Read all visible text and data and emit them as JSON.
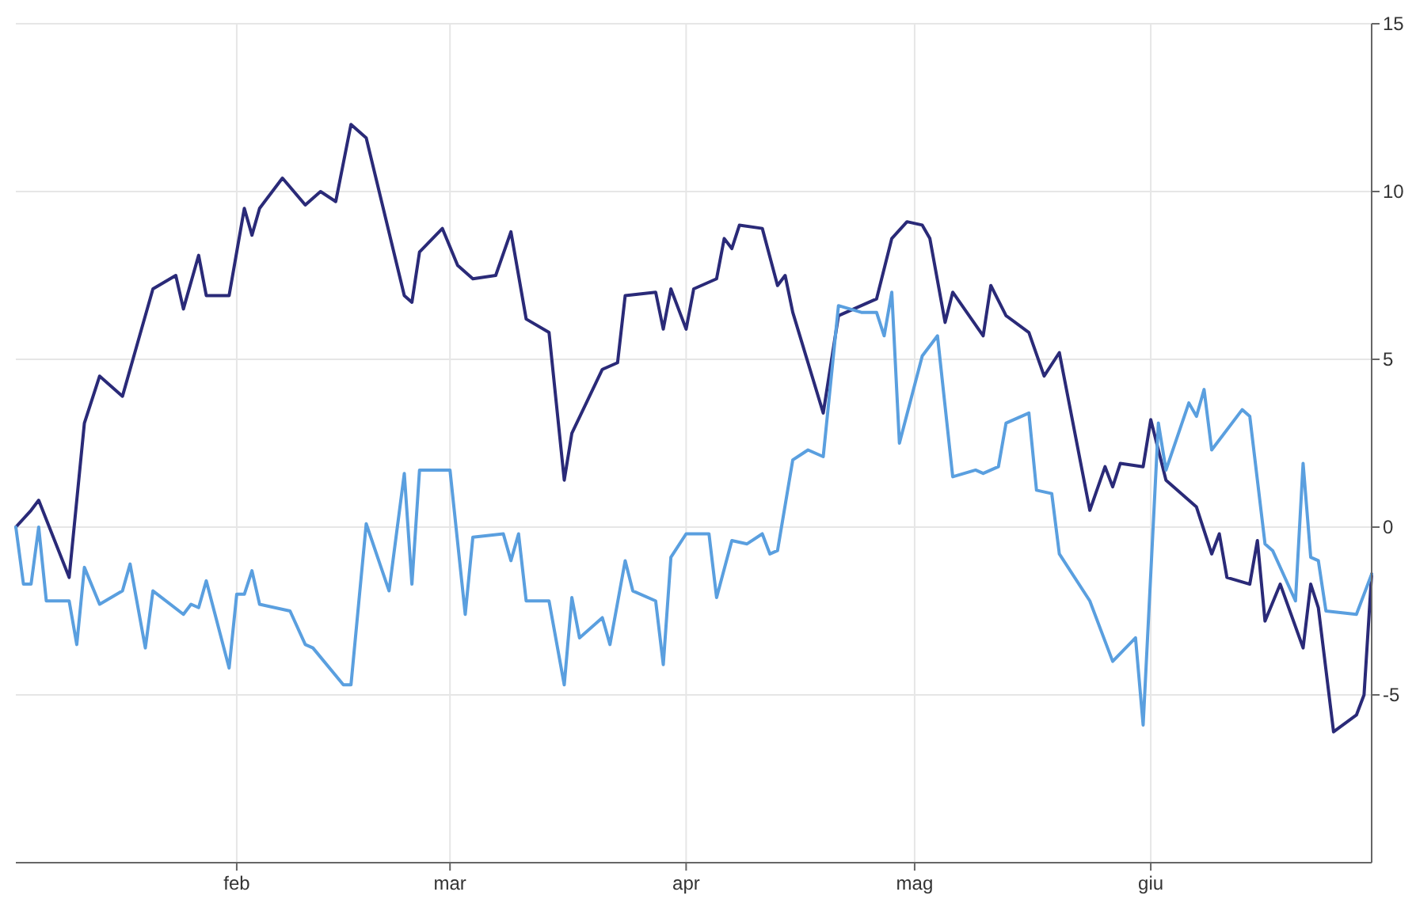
{
  "chart_data": {
    "type": "line",
    "grid": true,
    "line_style": "solid",
    "xlim": [
      "--01-03",
      "--06-30"
    ],
    "xticks": [
      {
        "value": "--02-01",
        "label": "feb"
      },
      {
        "value": "--03-01",
        "label": "mar"
      },
      {
        "value": "--04-01",
        "label": "apr"
      },
      {
        "value": "--05-01",
        "label": "mag"
      },
      {
        "value": "--06-01",
        "label": "giu"
      }
    ],
    "ylim": [
      -10,
      15
    ],
    "yticks": [
      15,
      10,
      5,
      0,
      -5
    ],
    "series": [
      {
        "color": "#2a2a78",
        "x": [
          "--01-03",
          "--01-05",
          "--01-06",
          "--01-10",
          "--01-12",
          "--01-14",
          "--01-17",
          "--01-19",
          "--01-21",
          "--01-24",
          "--01-25",
          "--01-27",
          "--01-28",
          "--01-31",
          "--02-02",
          "--02-03",
          "--02-04",
          "--02-07",
          "--02-10",
          "--02-12",
          "--02-14",
          "--02-16",
          "--02-18",
          "--02-23",
          "--02-24",
          "--02-25",
          "--02-28",
          "--03-02",
          "--03-04",
          "--03-07",
          "--03-09",
          "--03-11",
          "--03-14",
          "--03-16",
          "--03-17",
          "--03-21",
          "--03-23",
          "--03-24",
          "--03-28",
          "--03-29",
          "--03-30",
          "--04-01",
          "--04-02",
          "--04-05",
          "--04-06",
          "--04-07",
          "--04-08",
          "--04-11",
          "--04-13",
          "--04-14",
          "--04-15",
          "--04-19",
          "--04-21",
          "--04-26",
          "--04-28",
          "--04-30",
          "--05-02",
          "--05-03",
          "--05-05",
          "--05-06",
          "--05-10",
          "--05-11",
          "--05-13",
          "--05-16",
          "--05-18",
          "--05-20",
          "--05-24",
          "--05-26",
          "--05-27",
          "--05-28",
          "--05-31",
          "--06-01",
          "--06-03",
          "--06-07",
          "--06-09",
          "--06-10",
          "--06-11",
          "--06-14",
          "--06-15",
          "--06-16",
          "--06-18",
          "--06-21",
          "--06-22",
          "--06-23",
          "--06-25",
          "--06-28",
          "--06-29",
          "--06-30"
        ],
        "values": [
          0,
          0.5,
          0.8,
          -1.5,
          3.1,
          4.5,
          3.9,
          5.5,
          7.1,
          7.5,
          6.5,
          8.1,
          6.9,
          6.9,
          9.5,
          8.7,
          9.5,
          10.4,
          9.6,
          10.0,
          9.7,
          12.0,
          11.6,
          6.9,
          6.7,
          8.2,
          8.9,
          7.8,
          7.4,
          7.5,
          8.8,
          6.2,
          5.8,
          1.4,
          2.8,
          4.7,
          4.9,
          6.9,
          7.0,
          5.9,
          7.1,
          5.9,
          7.1,
          7.4,
          8.6,
          8.3,
          9.0,
          8.9,
          7.2,
          7.5,
          6.4,
          3.4,
          6.3,
          6.8,
          8.6,
          9.1,
          9.0,
          8.6,
          6.1,
          7.0,
          5.7,
          7.2,
          6.3,
          5.8,
          4.5,
          5.2,
          0.5,
          1.8,
          1.2,
          1.9,
          1.8,
          3.2,
          1.4,
          0.6,
          -0.8,
          -0.2,
          -1.5,
          -1.7,
          -0.4,
          -2.8,
          -1.7,
          -3.6,
          -1.7,
          -2.4,
          -6.1,
          -5.6,
          -5.0,
          -1.4
        ]
      },
      {
        "color": "#5a9fdf",
        "x": [
          "--01-03",
          "--01-04",
          "--01-05",
          "--01-06",
          "--01-07",
          "--01-10",
          "--01-11",
          "--01-12",
          "--01-14",
          "--01-17",
          "--01-18",
          "--01-20",
          "--01-21",
          "--01-25",
          "--01-26",
          "--01-27",
          "--01-28",
          "--01-31",
          "--02-01",
          "--02-02",
          "--02-03",
          "--02-04",
          "--02-08",
          "--02-10",
          "--02-11",
          "--02-15",
          "--02-16",
          "--02-18",
          "--02-21",
          "--02-23",
          "--02-24",
          "--02-25",
          "--03-01",
          "--03-03",
          "--03-04",
          "--03-08",
          "--03-09",
          "--03-10",
          "--03-11",
          "--03-14",
          "--03-16",
          "--03-17",
          "--03-18",
          "--03-21",
          "--03-22",
          "--03-24",
          "--03-25",
          "--03-28",
          "--03-29",
          "--03-30",
          "--04-01",
          "--04-04",
          "--04-05",
          "--04-07",
          "--04-09",
          "--04-11",
          "--04-12",
          "--04-13",
          "--04-15",
          "--04-17",
          "--04-19",
          "--04-21",
          "--04-24",
          "--04-26",
          "--04-27",
          "--04-28",
          "--04-29",
          "--05-02",
          "--05-04",
          "--05-06",
          "--05-09",
          "--05-10",
          "--05-12",
          "--05-13",
          "--05-16",
          "--05-17",
          "--05-19",
          "--05-20",
          "--05-24",
          "--05-27",
          "--05-30",
          "--05-31",
          "--06-02",
          "--06-03",
          "--06-06",
          "--06-07",
          "--06-08",
          "--06-09",
          "--06-13",
          "--06-14",
          "--06-16",
          "--06-17",
          "--06-20",
          "--06-21",
          "--06-22",
          "--06-23",
          "--06-24",
          "--06-28",
          "--06-30"
        ],
        "values": [
          0,
          -1.7,
          -1.7,
          0,
          -2.2,
          -2.2,
          -3.5,
          -1.2,
          -2.3,
          -1.9,
          -1.1,
          -3.6,
          -1.9,
          -2.6,
          -2.3,
          -2.4,
          -1.6,
          -4.2,
          -2.0,
          -2.0,
          -1.3,
          -2.3,
          -2.5,
          -3.5,
          -3.6,
          -4.7,
          -4.7,
          0.1,
          -1.9,
          1.6,
          -1.7,
          1.7,
          1.7,
          -2.6,
          -0.3,
          -0.2,
          -1.0,
          -0.2,
          -2.2,
          -2.2,
          -4.7,
          -2.1,
          -3.3,
          -2.7,
          -3.5,
          -1.0,
          -1.9,
          -2.2,
          -4.1,
          -0.9,
          -0.2,
          -0.2,
          -2.1,
          -0.4,
          -0.5,
          -0.2,
          -0.8,
          -0.7,
          2.0,
          2.3,
          2.1,
          6.6,
          6.4,
          6.4,
          5.7,
          7.0,
          2.5,
          5.1,
          5.7,
          1.5,
          1.7,
          1.6,
          1.8,
          3.1,
          3.4,
          1.1,
          1.0,
          -0.8,
          -2.2,
          -4.0,
          -3.3,
          -5.9,
          3.1,
          1.7,
          3.7,
          3.3,
          4.1,
          2.3,
          3.5,
          3.3,
          -0.5,
          -0.7,
          -2.2,
          1.9,
          -0.9,
          -1.0,
          -2.5,
          -2.6,
          -1.4
        ]
      }
    ]
  }
}
